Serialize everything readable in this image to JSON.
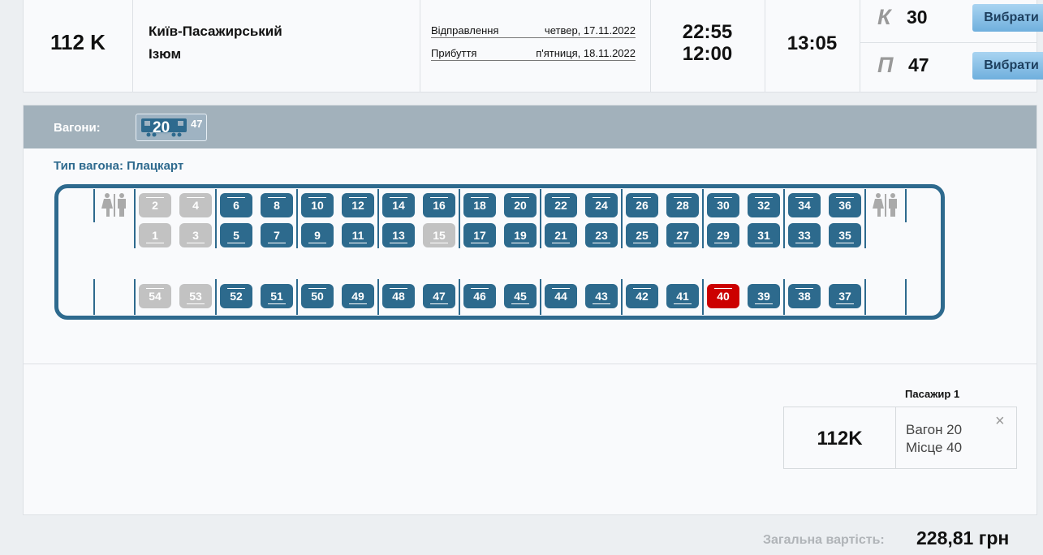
{
  "train": {
    "number": "112 K",
    "from": "Київ-Пасажирський",
    "to": "Ізюм",
    "departure_label": "Відправлення",
    "departure_date": "четвер, 17.11.2022",
    "arrival_label": "Прибуття",
    "arrival_date": "п'ятниця, 18.11.2022",
    "departure_time": "22:55",
    "arrival_time": "12:00",
    "duration": "13:05",
    "classes": [
      {
        "letter": "К",
        "count": "30",
        "button": "Вибрати"
      },
      {
        "letter": "П",
        "count": "47",
        "button": "Вибрати"
      }
    ]
  },
  "wagons": {
    "label": "Вагони:",
    "items": [
      {
        "number": "20",
        "free": "47"
      }
    ]
  },
  "wagon_type": "Тип вагона: Плацкарт",
  "seats": {
    "top_row": [
      "2",
      "4",
      "6",
      "8",
      "10",
      "12",
      "14",
      "16",
      "18",
      "20",
      "22",
      "24",
      "26",
      "28",
      "30",
      "32",
      "34",
      "36"
    ],
    "middle_row": [
      "1",
      "3",
      "5",
      "7",
      "9",
      "11",
      "13",
      "15",
      "17",
      "19",
      "21",
      "23",
      "25",
      "27",
      "29",
      "31",
      "33",
      "35"
    ],
    "side_row": [
      "54",
      "53",
      "52",
      "51",
      "50",
      "49",
      "48",
      "47",
      "46",
      "45",
      "44",
      "43",
      "42",
      "41",
      "40",
      "39",
      "38",
      "37"
    ],
    "unavailable": [
      "1",
      "2",
      "3",
      "4",
      "15",
      "53",
      "54"
    ],
    "selected": [
      "40"
    ]
  },
  "colors": {
    "available": "#2d6a8d",
    "unavailable": "#c2c2c2",
    "selected": "#cc0000",
    "accent": "#2e6a8e"
  },
  "passenger": {
    "title": "Пасажир 1",
    "train": "112K",
    "wagon": "Вагон 20",
    "seat": "Місце 40",
    "close_icon": "×"
  },
  "total": {
    "label": "Загальна вартість:",
    "value": "228,81 грн"
  }
}
